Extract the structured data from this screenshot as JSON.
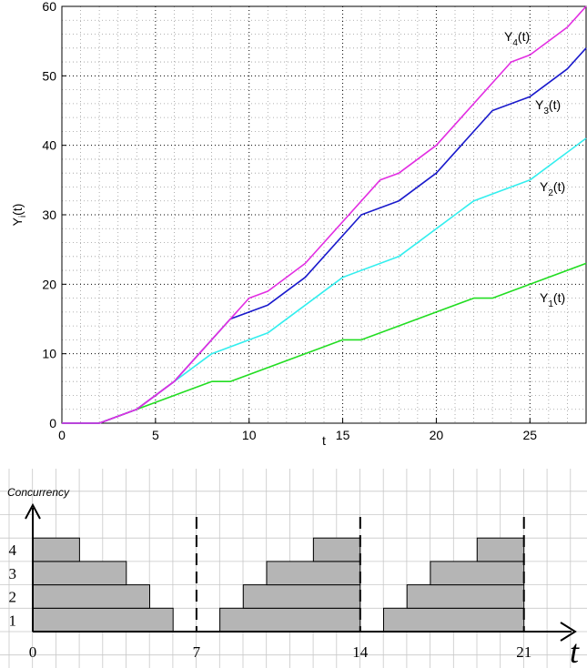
{
  "chart_data": [
    {
      "type": "line",
      "title": "",
      "xlabel": "t",
      "ylabel": "Y_i(t)",
      "xlim": [
        0,
        28
      ],
      "ylim": [
        0,
        60
      ],
      "xticks": [
        "0",
        "5",
        "10",
        "15",
        "20",
        "25"
      ],
      "yticks": [
        "0",
        "10",
        "20",
        "30",
        "40",
        "50",
        "60"
      ],
      "grid": "dotted major and minor",
      "series": [
        {
          "name": "Y",
          "subscript": "1",
          "suffix": "(t)",
          "color": "#22dd22",
          "x": [
            0,
            2,
            4,
            6,
            8,
            9,
            15,
            16,
            22,
            23,
            28
          ],
          "y": [
            0,
            0,
            2,
            4,
            6,
            6,
            12,
            12,
            18,
            18,
            23
          ]
        },
        {
          "name": "Y",
          "subscript": "2",
          "suffix": "(t)",
          "color": "#33eeee",
          "x": [
            0,
            2,
            4,
            6,
            8,
            11,
            15,
            18,
            20,
            22,
            25,
            28
          ],
          "y": [
            0,
            0,
            2,
            6,
            10,
            13,
            21,
            24,
            28,
            32,
            35,
            41
          ]
        },
        {
          "name": "Y",
          "subscript": "3",
          "suffix": "(t)",
          "color": "#1a1acc",
          "x": [
            0,
            2,
            4,
            6,
            9,
            11,
            13,
            16,
            18,
            20,
            23,
            25,
            27,
            28
          ],
          "y": [
            0,
            0,
            2,
            6,
            15,
            17,
            21,
            30,
            32,
            36,
            45,
            47,
            51,
            54
          ]
        },
        {
          "name": "Y",
          "subscript": "4",
          "suffix": "(t)",
          "color": "#e22ee2",
          "x": [
            0,
            2,
            4,
            6,
            9,
            10,
            11,
            13,
            17,
            18,
            20,
            24,
            25,
            27,
            28
          ],
          "y": [
            0,
            0,
            2,
            6,
            15,
            18,
            19,
            23,
            35,
            36,
            40,
            52,
            53,
            57,
            60
          ]
        }
      ]
    },
    {
      "type": "bar",
      "orientation": "horizontal",
      "title": "",
      "ylabel": "Concurrency",
      "xlabel": "t",
      "xticks": [
        "0",
        "7",
        "14",
        "21"
      ],
      "yticks": [
        "1",
        "2",
        "3",
        "4"
      ],
      "xlim": [
        0,
        23.5
      ],
      "ylim": [
        0,
        5.5
      ],
      "period_lines": [
        7,
        14,
        21
      ],
      "bar_color": "#b5b5b5",
      "bars": [
        {
          "level": 1,
          "start": 0,
          "end": 6
        },
        {
          "level": 2,
          "start": 0,
          "end": 5
        },
        {
          "level": 3,
          "start": 0,
          "end": 4
        },
        {
          "level": 4,
          "start": 0,
          "end": 2
        },
        {
          "level": 1,
          "start": 8,
          "end": 14
        },
        {
          "level": 2,
          "start": 9,
          "end": 14
        },
        {
          "level": 3,
          "start": 10,
          "end": 14
        },
        {
          "level": 4,
          "start": 12,
          "end": 14
        },
        {
          "level": 1,
          "start": 15,
          "end": 21
        },
        {
          "level": 2,
          "start": 16,
          "end": 21
        },
        {
          "level": 3,
          "start": 17,
          "end": 21
        },
        {
          "level": 4,
          "start": 19,
          "end": 21
        }
      ]
    }
  ]
}
